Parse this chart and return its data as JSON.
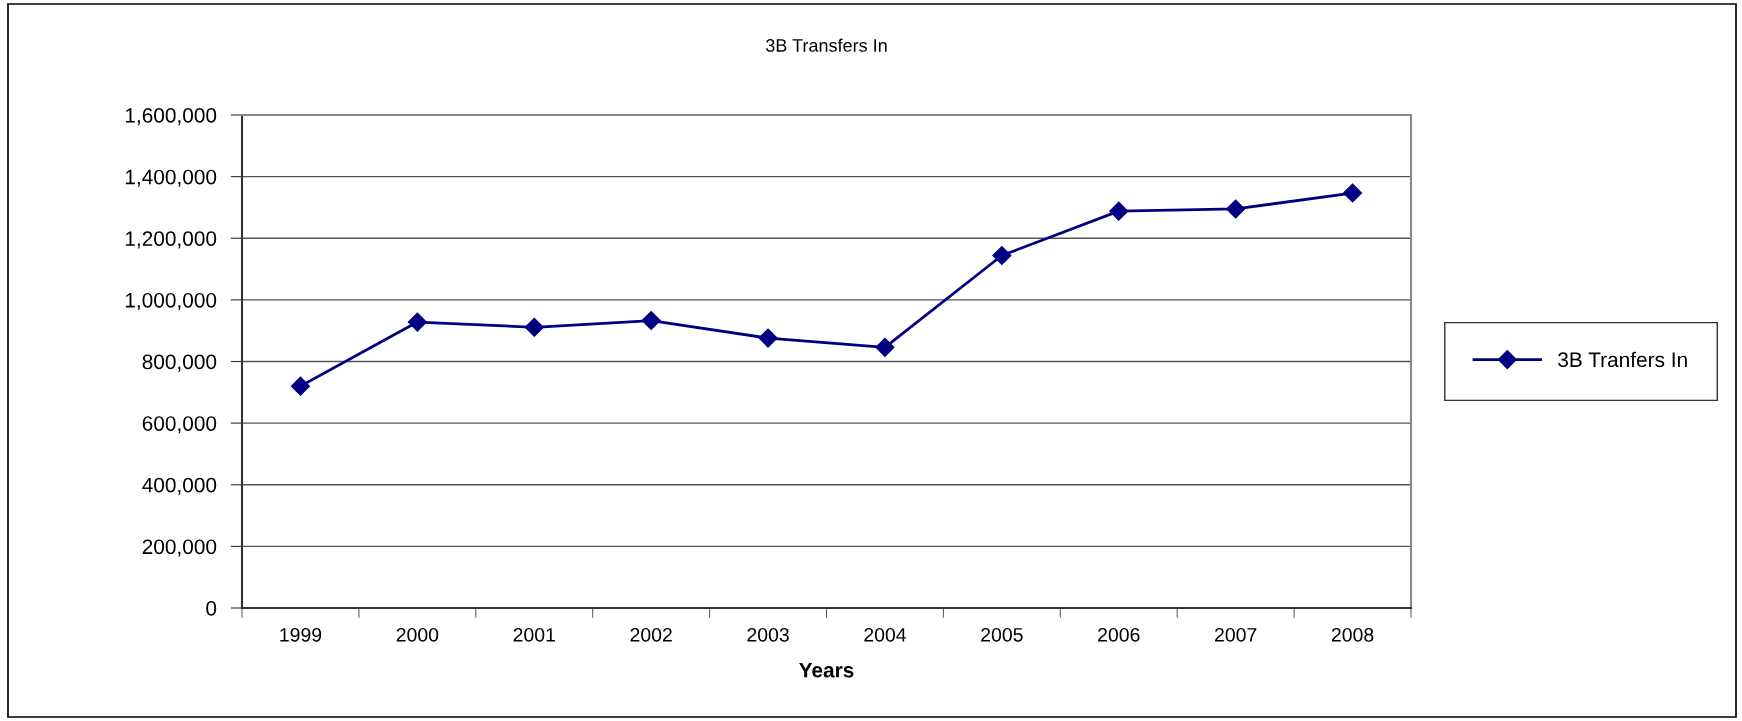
{
  "chart_data": {
    "type": "line",
    "title": "3B Transfers In",
    "xlabel": "Years",
    "categories": [
      "1999",
      "2000",
      "2001",
      "2002",
      "2003",
      "2004",
      "2005",
      "2006",
      "2007",
      "2008"
    ],
    "series": [
      {
        "name": "3B Tranfers In",
        "color": "#000080",
        "values": [
          720000,
          928000,
          911000,
          933000,
          876000,
          846000,
          1144000,
          1288000,
          1295000,
          1347000
        ]
      }
    ],
    "ylim": [
      0,
      1600000
    ],
    "yticks": [
      {
        "value": 0,
        "label": "0"
      },
      {
        "value": 200000,
        "label": "200,000"
      },
      {
        "value": 400000,
        "label": "400,000"
      },
      {
        "value": 600000,
        "label": "600,000"
      },
      {
        "value": 800000,
        "label": "800,000"
      },
      {
        "value": 1000000,
        "label": "1,000,000"
      },
      {
        "value": 1200000,
        "label": "1,200,000"
      },
      {
        "value": 1400000,
        "label": "1,400,000"
      },
      {
        "value": 1600000,
        "label": "1,600,000"
      }
    ],
    "grid": "y",
    "legend": "right",
    "marker": "diamond",
    "line_style": "solid"
  }
}
